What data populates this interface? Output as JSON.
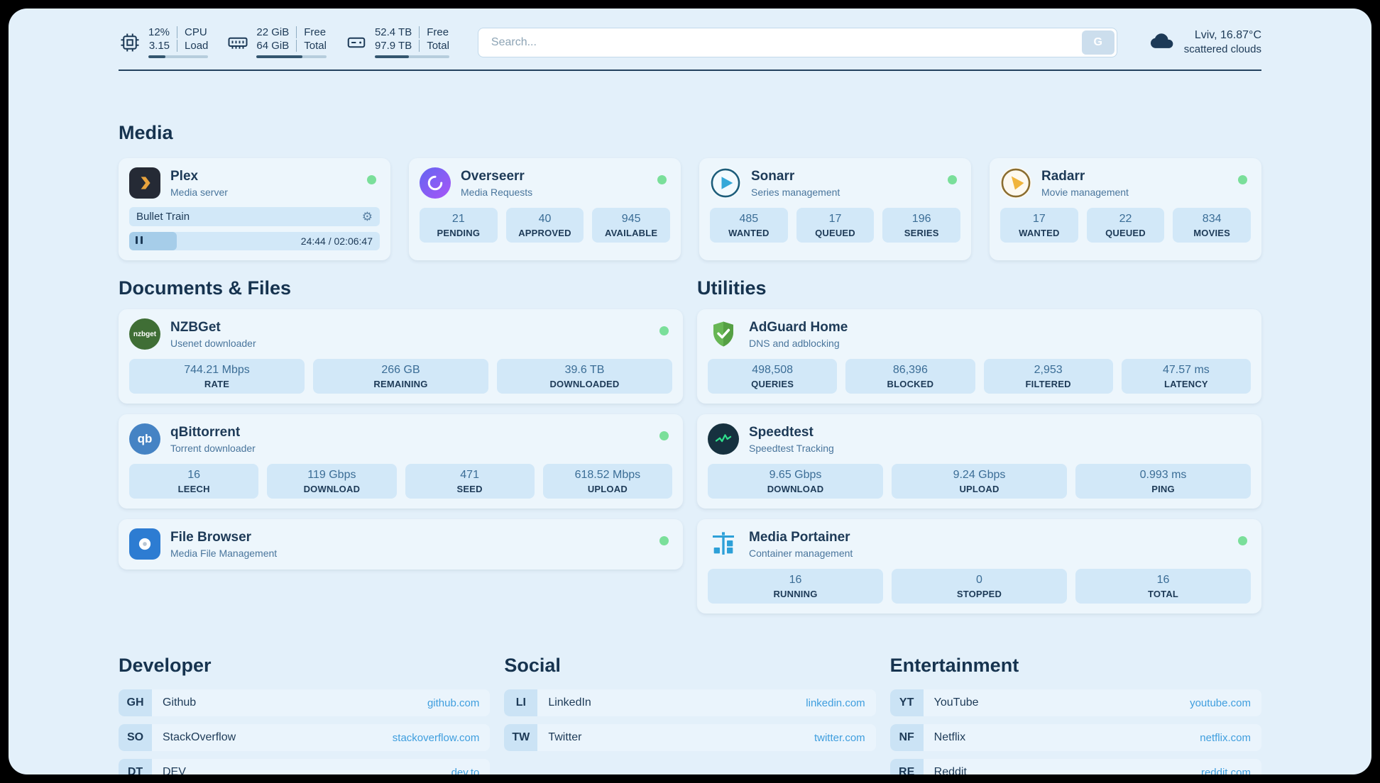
{
  "topbar": {
    "cpu": {
      "values": [
        "12%",
        "3.15"
      ],
      "labels": [
        "CPU",
        "Load"
      ],
      "progress_percent": 28
    },
    "memory": {
      "values": [
        "22 GiB",
        "64 GiB"
      ],
      "labels": [
        "Free",
        "Total"
      ],
      "progress_percent": 66
    },
    "disk": {
      "values": [
        "52.4 TB",
        "97.9 TB"
      ],
      "labels": [
        "Free",
        "Total"
      ],
      "progress_percent": 46
    },
    "search": {
      "placeholder": "Search...",
      "button_label": "G"
    },
    "weather": {
      "location": "Lviv, 16.87°C",
      "condition": "scattered clouds"
    }
  },
  "media": {
    "title": "Media",
    "plex": {
      "name": "Plex",
      "subtitle": "Media server",
      "now_playing": "Bullet Train",
      "time": "24:44 / 02:06:47",
      "progress_percent": 19
    },
    "overseerr": {
      "name": "Overseerr",
      "subtitle": "Media Requests",
      "stats": [
        {
          "value": "21",
          "label": "PENDING"
        },
        {
          "value": "40",
          "label": "APPROVED"
        },
        {
          "value": "945",
          "label": "AVAILABLE"
        }
      ]
    },
    "sonarr": {
      "name": "Sonarr",
      "subtitle": "Series management",
      "stats": [
        {
          "value": "485",
          "label": "WANTED"
        },
        {
          "value": "17",
          "label": "QUEUED"
        },
        {
          "value": "196",
          "label": "SERIES"
        }
      ]
    },
    "radarr": {
      "name": "Radarr",
      "subtitle": "Movie management",
      "stats": [
        {
          "value": "17",
          "label": "WANTED"
        },
        {
          "value": "22",
          "label": "QUEUED"
        },
        {
          "value": "834",
          "label": "MOVIES"
        }
      ]
    }
  },
  "documents": {
    "title": "Documents & Files",
    "nzbget": {
      "name": "NZBGet",
      "subtitle": "Usenet downloader",
      "stats": [
        {
          "value": "744.21 Mbps",
          "label": "RATE"
        },
        {
          "value": "266 GB",
          "label": "REMAINING"
        },
        {
          "value": "39.6 TB",
          "label": "DOWNLOADED"
        }
      ]
    },
    "qbittorrent": {
      "name": "qBittorrent",
      "subtitle": "Torrent downloader",
      "stats": [
        {
          "value": "16",
          "label": "LEECH"
        },
        {
          "value": "119 Gbps",
          "label": "DOWNLOAD"
        },
        {
          "value": "471",
          "label": "SEED"
        },
        {
          "value": "618.52 Mbps",
          "label": "UPLOAD"
        }
      ]
    },
    "filebrowser": {
      "name": "File Browser",
      "subtitle": "Media File Management"
    }
  },
  "utilities": {
    "title": "Utilities",
    "adguard": {
      "name": "AdGuard Home",
      "subtitle": "DNS and adblocking",
      "stats": [
        {
          "value": "498,508",
          "label": "QUERIES"
        },
        {
          "value": "86,396",
          "label": "BLOCKED"
        },
        {
          "value": "2,953",
          "label": "FILTERED"
        },
        {
          "value": "47.57 ms",
          "label": "LATENCY"
        }
      ]
    },
    "speedtest": {
      "name": "Speedtest",
      "subtitle": "Speedtest Tracking",
      "stats": [
        {
          "value": "9.65 Gbps",
          "label": "DOWNLOAD"
        },
        {
          "value": "9.24 Gbps",
          "label": "UPLOAD"
        },
        {
          "value": "0.993 ms",
          "label": "PING"
        }
      ]
    },
    "portainer": {
      "name": "Media Portainer",
      "subtitle": "Container management",
      "stats": [
        {
          "value": "16",
          "label": "RUNNING"
        },
        {
          "value": "0",
          "label": "STOPPED"
        },
        {
          "value": "16",
          "label": "TOTAL"
        }
      ]
    }
  },
  "bookmarks": {
    "developer": {
      "title": "Developer",
      "items": [
        {
          "abbr": "GH",
          "name": "Github",
          "url": "github.com"
        },
        {
          "abbr": "SO",
          "name": "StackOverflow",
          "url": "stackoverflow.com"
        },
        {
          "abbr": "DT",
          "name": "DEV",
          "url": "dev.to"
        }
      ]
    },
    "social": {
      "title": "Social",
      "items": [
        {
          "abbr": "LI",
          "name": "LinkedIn",
          "url": "linkedin.com"
        },
        {
          "abbr": "TW",
          "name": "Twitter",
          "url": "twitter.com"
        }
      ]
    },
    "entertainment": {
      "title": "Entertainment",
      "items": [
        {
          "abbr": "YT",
          "name": "YouTube",
          "url": "youtube.com"
        },
        {
          "abbr": "NF",
          "name": "Netflix",
          "url": "netflix.com"
        },
        {
          "abbr": "RE",
          "name": "Reddit",
          "url": "reddit.com"
        }
      ]
    }
  },
  "icons": {
    "qbittorrent_text": "qb",
    "nzbget_text": "nzbget",
    "gear": "⚙"
  },
  "colors": {
    "background": "#e3f0fa",
    "card": "#edf6fc",
    "stat_box": "#d2e8f8",
    "navy": "#1d3a57",
    "link": "#3f9ede",
    "status_green": "#7adf9a"
  }
}
